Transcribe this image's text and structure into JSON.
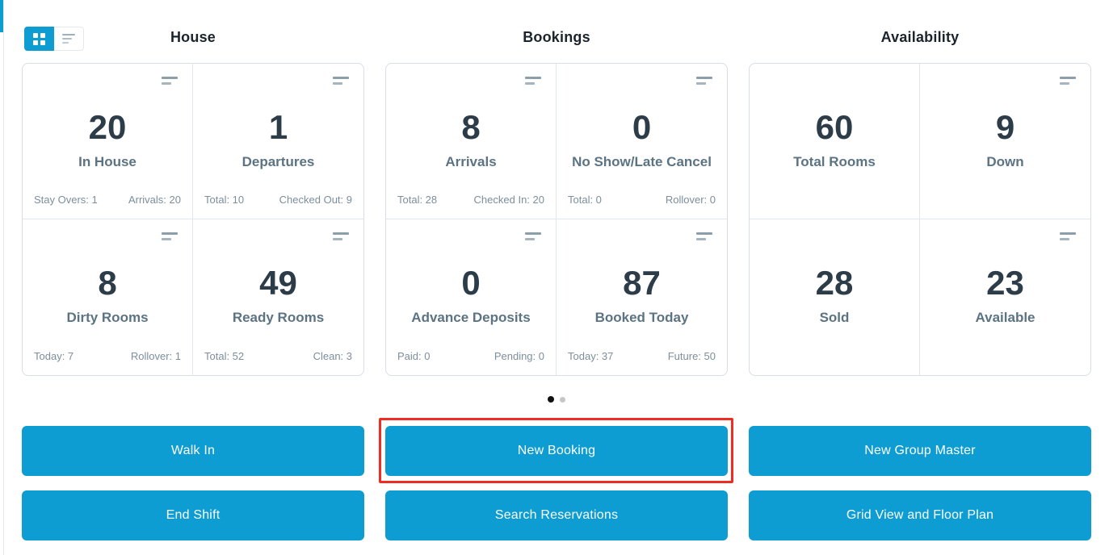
{
  "colors": {
    "accent_blue": "#0d9dd2",
    "highlight_red": "#ee2e24",
    "value_text": "#2d3c49",
    "label_text": "#5b7383",
    "muted_text": "#7d8e9c"
  },
  "icons": {
    "grid_view": "grid-view-icon (2x2 white squares)",
    "list_view": "list-view-icon (3 gray bars)",
    "card_menu": "two-bars-menu-icon"
  },
  "sections": [
    {
      "title": "House",
      "cards": [
        {
          "value": "20",
          "label": "In House",
          "stat_left": "Stay Overs: 1",
          "stat_right": "Arrivals: 20"
        },
        {
          "value": "1",
          "label": "Departures",
          "stat_left": "Total: 10",
          "stat_right": "Checked Out: 9"
        },
        {
          "value": "8",
          "label": "Dirty Rooms",
          "stat_left": "Today: 7",
          "stat_right": "Rollover: 1"
        },
        {
          "value": "49",
          "label": "Ready Rooms",
          "stat_left": "Total: 52",
          "stat_right": "Clean: 3"
        }
      ]
    },
    {
      "title": "Bookings",
      "cards": [
        {
          "value": "8",
          "label": "Arrivals",
          "stat_left": "Total: 28",
          "stat_right": "Checked In: 20"
        },
        {
          "value": "0",
          "label": "No Show/Late Cancel",
          "stat_left": "Total: 0",
          "stat_right": "Rollover: 0"
        },
        {
          "value": "0",
          "label": "Advance Deposits",
          "stat_left": "Paid: 0",
          "stat_right": "Pending: 0"
        },
        {
          "value": "87",
          "label": "Booked Today",
          "stat_left": "Today: 37",
          "stat_right": "Future: 50"
        }
      ]
    },
    {
      "title": "Availability",
      "cards": [
        {
          "value": "60",
          "label": "Total Rooms"
        },
        {
          "value": "9",
          "label": "Down"
        },
        {
          "value": "28",
          "label": "Sold"
        },
        {
          "value": "23",
          "label": "Available"
        }
      ]
    }
  ],
  "carousel": {
    "total_pages": 2,
    "active_page": 1
  },
  "actions": [
    {
      "label": "Walk In"
    },
    {
      "label": "New Booking",
      "highlighted": true
    },
    {
      "label": "New Group Master"
    },
    {
      "label": "End Shift"
    },
    {
      "label": "Search Reservations"
    },
    {
      "label": "Grid View and Floor Plan"
    }
  ]
}
